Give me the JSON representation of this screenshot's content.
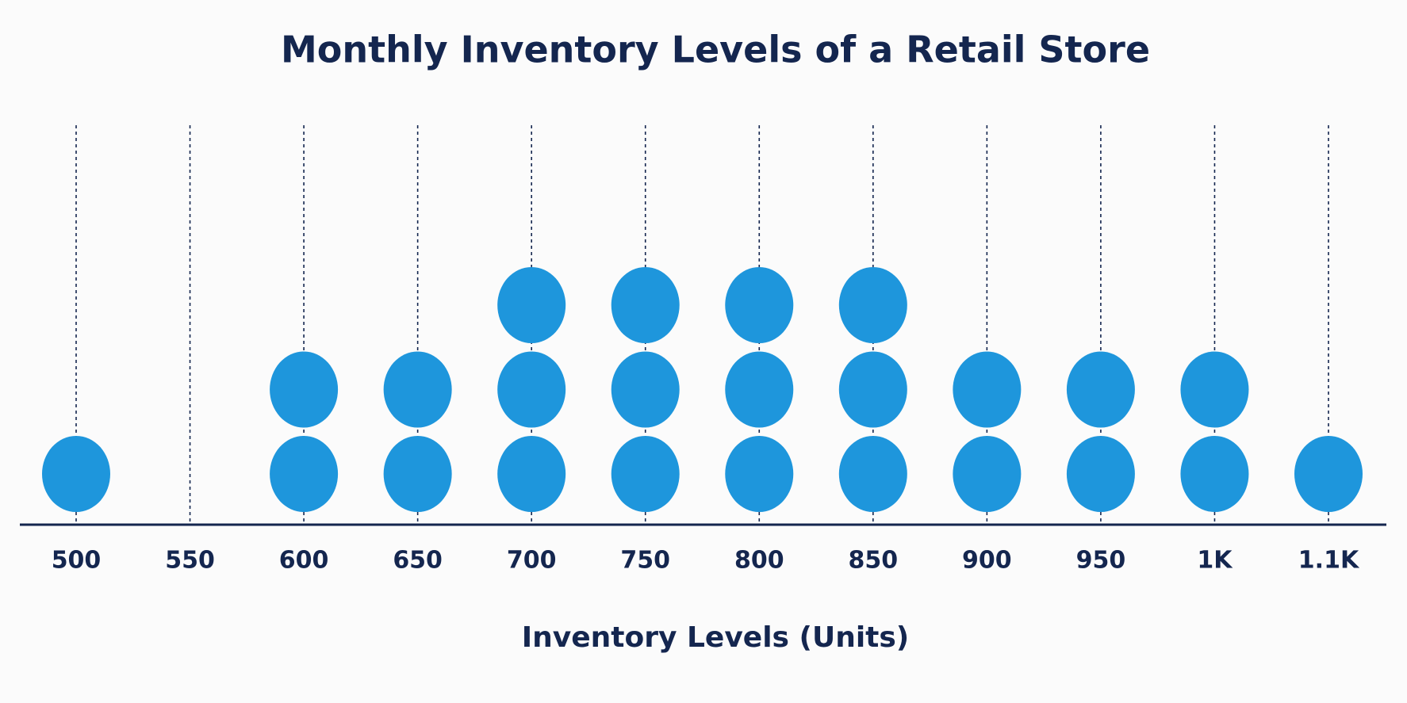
{
  "chart_data": {
    "type": "dot",
    "title": "Monthly Inventory Levels of a Retail Store",
    "x_label": "Inventory Levels (Units)",
    "categories": [
      "500",
      "550",
      "600",
      "650",
      "700",
      "750",
      "800",
      "850",
      "900",
      "950",
      "1K",
      "1.1K"
    ],
    "values": [
      1,
      0,
      2,
      2,
      3,
      3,
      3,
      3,
      2,
      2,
      2,
      1
    ],
    "color": "#1e96dc",
    "grid": true
  }
}
